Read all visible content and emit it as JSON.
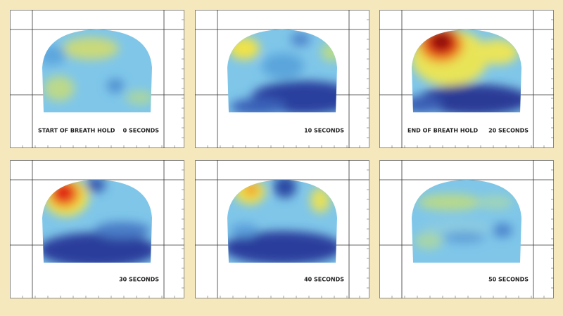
{
  "panels": [
    {
      "label": "START OF BREATH HOLD",
      "time": "0 SECONDS"
    },
    {
      "time": "10 SECONDS"
    },
    {
      "label": "END OF BREATH HOLD",
      "time": "20 SECONDS"
    },
    {
      "time": "30 SECONDS"
    },
    {
      "time": "40 SECONDS"
    },
    {
      "time": "50 SECONDS"
    }
  ]
}
